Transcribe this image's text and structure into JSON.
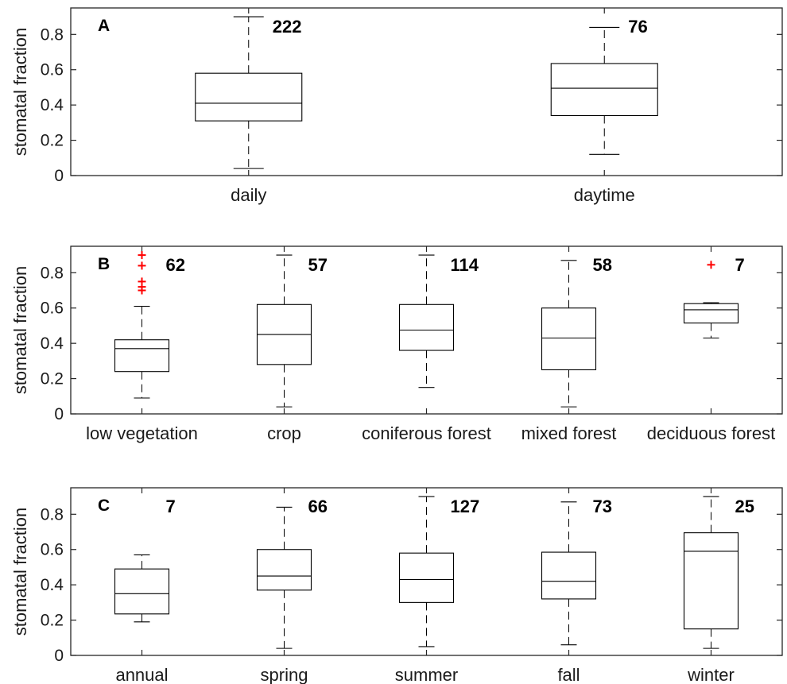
{
  "chart_data": [
    {
      "type": "box",
      "panel_label": "A",
      "ylabel": "stomatal fraction",
      "ylim": [
        0,
        0.95
      ],
      "yticks": [
        0,
        0.2,
        0.4,
        0.6,
        0.8
      ],
      "ytick_labels": [
        "0",
        "0.2",
        "0.4",
        "0.6",
        "0.8"
      ],
      "categories": [
        "daily",
        "daytime"
      ],
      "boxes": [
        {
          "category": "daily",
          "whisker_low": 0.04,
          "q1": 0.31,
          "median": 0.41,
          "q3": 0.58,
          "whisker_high": 0.9,
          "n": "222",
          "outliers": []
        },
        {
          "category": "daytime",
          "whisker_low": 0.12,
          "q1": 0.34,
          "median": 0.495,
          "q3": 0.635,
          "whisker_high": 0.84,
          "n": "76",
          "outliers": []
        }
      ],
      "outlier_color": "#ff0000"
    },
    {
      "type": "box",
      "panel_label": "B",
      "ylabel": "stomatal fraction",
      "ylim": [
        0,
        0.95
      ],
      "yticks": [
        0,
        0.2,
        0.4,
        0.6,
        0.8
      ],
      "ytick_labels": [
        "0",
        "0.2",
        "0.4",
        "0.6",
        "0.8"
      ],
      "categories": [
        "low vegetation",
        "crop",
        "coniferous forest",
        "mixed forest",
        "deciduous forest"
      ],
      "boxes": [
        {
          "category": "low vegetation",
          "whisker_low": 0.09,
          "q1": 0.24,
          "median": 0.37,
          "q3": 0.42,
          "whisker_high": 0.61,
          "n": "62",
          "outliers": [
            0.9,
            0.84,
            0.75,
            0.72,
            0.7
          ]
        },
        {
          "category": "crop",
          "whisker_low": 0.04,
          "q1": 0.28,
          "median": 0.45,
          "q3": 0.62,
          "whisker_high": 0.9,
          "n": "57",
          "outliers": []
        },
        {
          "category": "coniferous forest",
          "whisker_low": 0.15,
          "q1": 0.36,
          "median": 0.475,
          "q3": 0.62,
          "whisker_high": 0.9,
          "n": "114",
          "outliers": []
        },
        {
          "category": "mixed forest",
          "whisker_low": 0.04,
          "q1": 0.25,
          "median": 0.43,
          "q3": 0.6,
          "whisker_high": 0.87,
          "n": "58",
          "outliers": []
        },
        {
          "category": "deciduous forest",
          "whisker_low": 0.43,
          "q1": 0.515,
          "median": 0.59,
          "q3": 0.625,
          "whisker_high": 0.63,
          "n": "7",
          "outliers": [
            0.845
          ]
        }
      ],
      "outlier_color": "#ff0000"
    },
    {
      "type": "box",
      "panel_label": "C",
      "ylabel": "stomatal fraction",
      "ylim": [
        0,
        0.95
      ],
      "yticks": [
        0,
        0.2,
        0.4,
        0.6,
        0.8
      ],
      "ytick_labels": [
        "0",
        "0.2",
        "0.4",
        "0.6",
        "0.8"
      ],
      "categories": [
        "annual",
        "spring",
        "summer",
        "fall",
        "winter"
      ],
      "boxes": [
        {
          "category": "annual",
          "whisker_low": 0.19,
          "q1": 0.235,
          "median": 0.35,
          "q3": 0.49,
          "whisker_high": 0.57,
          "n": "7",
          "outliers": []
        },
        {
          "category": "spring",
          "whisker_low": 0.04,
          "q1": 0.37,
          "median": 0.45,
          "q3": 0.6,
          "whisker_high": 0.84,
          "n": "66",
          "outliers": []
        },
        {
          "category": "summer",
          "whisker_low": 0.05,
          "q1": 0.3,
          "median": 0.43,
          "q3": 0.58,
          "whisker_high": 0.9,
          "n": "127",
          "outliers": []
        },
        {
          "category": "fall",
          "whisker_low": 0.06,
          "q1": 0.32,
          "median": 0.42,
          "q3": 0.585,
          "whisker_high": 0.87,
          "n": "73",
          "outliers": []
        },
        {
          "category": "winter",
          "whisker_low": 0.04,
          "q1": 0.15,
          "median": 0.59,
          "q3": 0.695,
          "whisker_high": 0.9,
          "n": "25",
          "outliers": []
        }
      ],
      "outlier_color": "#ff0000"
    }
  ]
}
